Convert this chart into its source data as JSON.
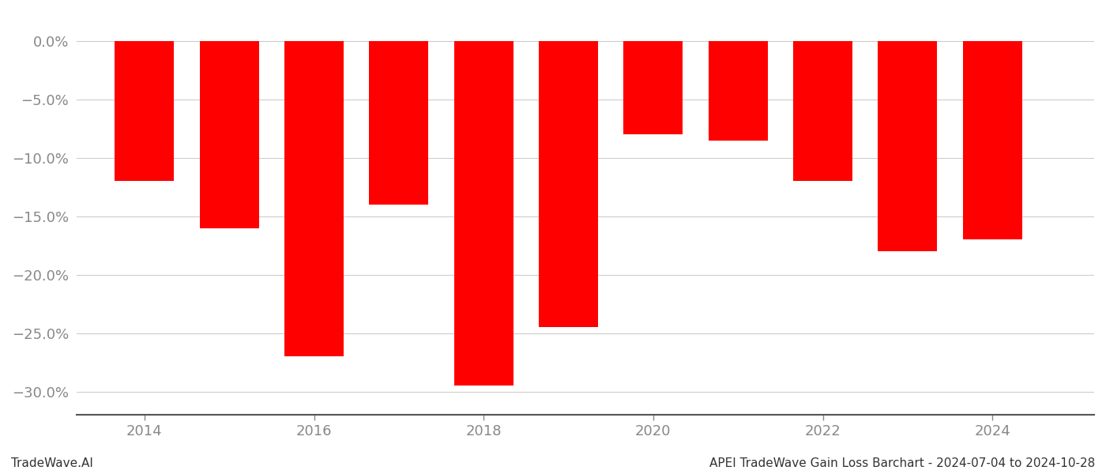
{
  "years": [
    2014,
    2015,
    2016,
    2017,
    2018,
    2019,
    2020,
    2021,
    2022,
    2023,
    2024
  ],
  "values": [
    -0.12,
    -0.16,
    -0.27,
    -0.14,
    -0.295,
    -0.245,
    -0.08,
    -0.085,
    -0.12,
    -0.18,
    -0.17
  ],
  "bar_color": "#ff0000",
  "background_color": "#ffffff",
  "grid_color": "#cccccc",
  "tick_label_color": "#888888",
  "ylim": [
    -0.32,
    0.025
  ],
  "yticks": [
    0.0,
    -0.05,
    -0.1,
    -0.15,
    -0.2,
    -0.25,
    -0.3
  ],
  "ytick_labels": [
    "0.0%",
    "−5.0%",
    "−10.0%",
    "−15.0%",
    "−20.0%",
    "−25.0%",
    "−30.0%"
  ],
  "xtick_years": [
    2014,
    2016,
    2018,
    2020,
    2022,
    2024
  ],
  "footer_left": "TradeWave.AI",
  "footer_right": "APEI TradeWave Gain Loss Barchart - 2024-07-04 to 2024-10-28",
  "footer_fontsize": 11,
  "tick_fontsize": 13,
  "bar_width": 0.7
}
